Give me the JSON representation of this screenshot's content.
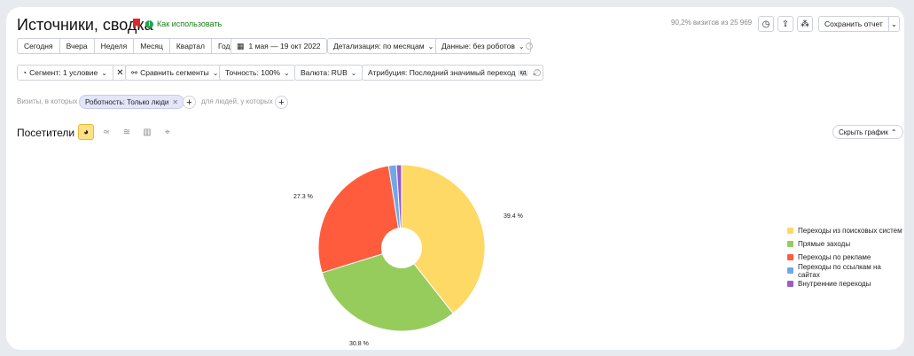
{
  "header": {
    "title": "Источники, сводка",
    "how_to_use": "Как использовать",
    "visits_info": "90,2% визитов из 25 969",
    "save_report": "Сохранить отчет"
  },
  "periods": [
    "Сегодня",
    "Вчера",
    "Неделя",
    "Месяц",
    "Квартал",
    "Год"
  ],
  "date_range": "1 мая — 19 окт 2022",
  "detail": "Детализация: по месяцам",
  "data_mode": "Данные: без роботов",
  "filters": {
    "segment": "Сегмент: 1 условие",
    "compare": "Сравнить сегменты",
    "accuracy": "Точность: 100%",
    "currency": "Валюта: RUB",
    "attribution": "Атрибуция: Последний значимый переход",
    "attribution_badge": "кд"
  },
  "conditions": {
    "visits_label": "Визиты, в которых",
    "chip": "Роботность: Только люди",
    "people_label": "для людей, у которых"
  },
  "section": {
    "title": "Посетители",
    "hide_chart": "Скрыть график"
  },
  "colors": {
    "search": "#ffd966",
    "direct": "#96cc5c",
    "ads": "#ff5c3e",
    "links": "#6fa8e8",
    "internal": "#9b5bc9"
  },
  "chart_data": {
    "type": "pie",
    "donut": true,
    "categories": [
      "Переходы из поисковых систем",
      "Прямые заходы",
      "Переходы по рекламе",
      "Переходы по ссылкам на сайтах",
      "Внутренние переходы"
    ],
    "values": [
      39.4,
      30.8,
      27.3,
      1.5,
      1.0
    ],
    "labels": [
      "39.4 %",
      "30.8 %",
      "27.3 %"
    ],
    "legend_position": "right"
  }
}
